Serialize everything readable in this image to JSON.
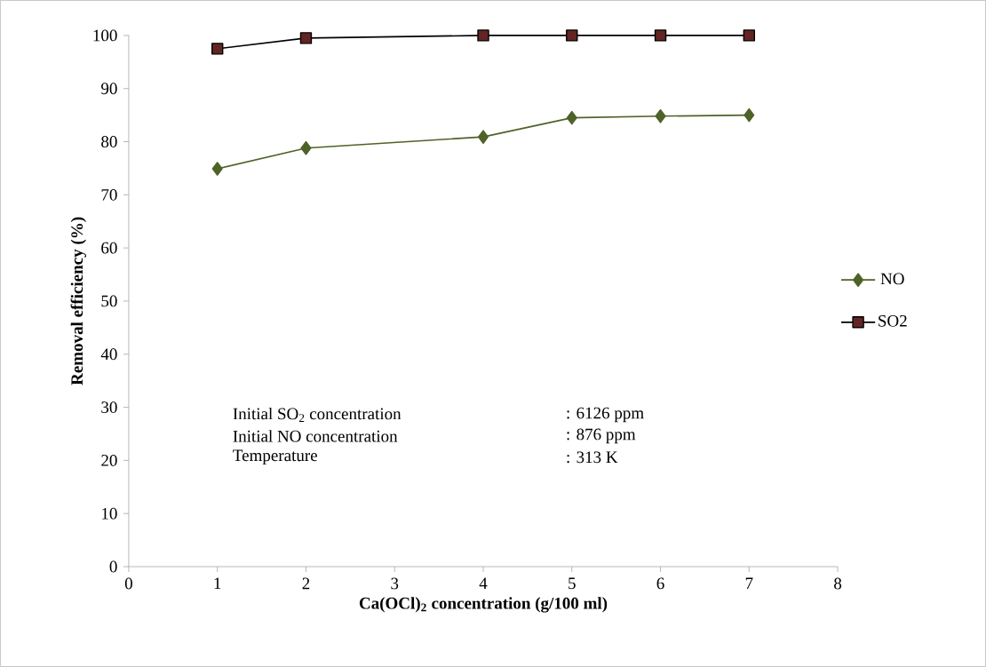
{
  "chart_data": {
    "type": "line",
    "xlabel": "Ca(OCl)$_{2}$ concentration (g/100 ml)",
    "ylabel": "Removal efficiency (%)",
    "x": [
      1,
      2,
      4,
      5,
      6,
      7
    ],
    "series": [
      {
        "name": "NO",
        "color": "#4f6228",
        "marker": "diamond",
        "values": [
          74.9,
          78.8,
          80.9,
          84.5,
          84.8,
          85.0
        ]
      },
      {
        "name": "SO2",
        "color": "#632523",
        "marker": "square",
        "values": [
          97.5,
          99.5,
          100,
          100,
          100,
          100
        ]
      }
    ],
    "xlim": [
      0,
      8
    ],
    "xticks": [
      0,
      1,
      2,
      3,
      4,
      5,
      6,
      7,
      8
    ],
    "ylim": [
      0,
      100
    ],
    "yticks": [
      0,
      10,
      20,
      30,
      40,
      50,
      60,
      70,
      80,
      90,
      100
    ],
    "legend": "right",
    "grid": false,
    "line_style": "solid",
    "annotations": [
      "Initial SO$_{2}$ concentration",
      ": 6126 ppm",
      "Initial NO concentration",
      ": 876   ppm",
      "Temperature",
      ": 313 K"
    ]
  }
}
